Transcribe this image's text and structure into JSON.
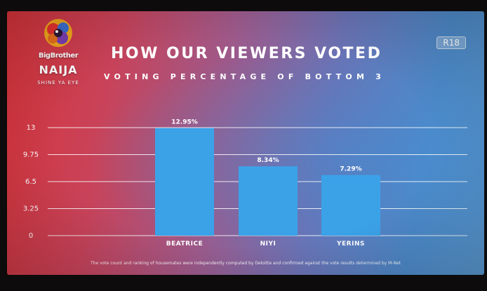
{
  "logo": {
    "line1": "BigBrother",
    "line2": "NAIJA",
    "tagline": "SHINE YA EYE"
  },
  "rating": "R18",
  "colors": {
    "bar": "#3ba2e8",
    "gridline": "#ffffff"
  },
  "chart_data": {
    "type": "bar",
    "title": "HOW OUR VIEWERS VOTED",
    "subtitle": "VOTING PERCENTAGE OF BOTTOM 3",
    "categories": [
      "BEATRICE",
      "NIYI",
      "YERINS"
    ],
    "values": [
      12.95,
      8.34,
      7.29
    ],
    "data_labels": [
      "12.95%",
      "8.34%",
      "7.29%"
    ],
    "ylim": [
      0,
      13
    ],
    "yticks": [
      0,
      3.25,
      6.5,
      9.75,
      13
    ],
    "ytick_labels": [
      "0",
      "3.25",
      "6.5",
      "9.75",
      "13"
    ],
    "grid": true,
    "xlabel": "",
    "ylabel": ""
  },
  "footnote": "The vote count and ranking of housemates were independently computed by Deloitte and confirmed against the vote results determined by M-Net"
}
